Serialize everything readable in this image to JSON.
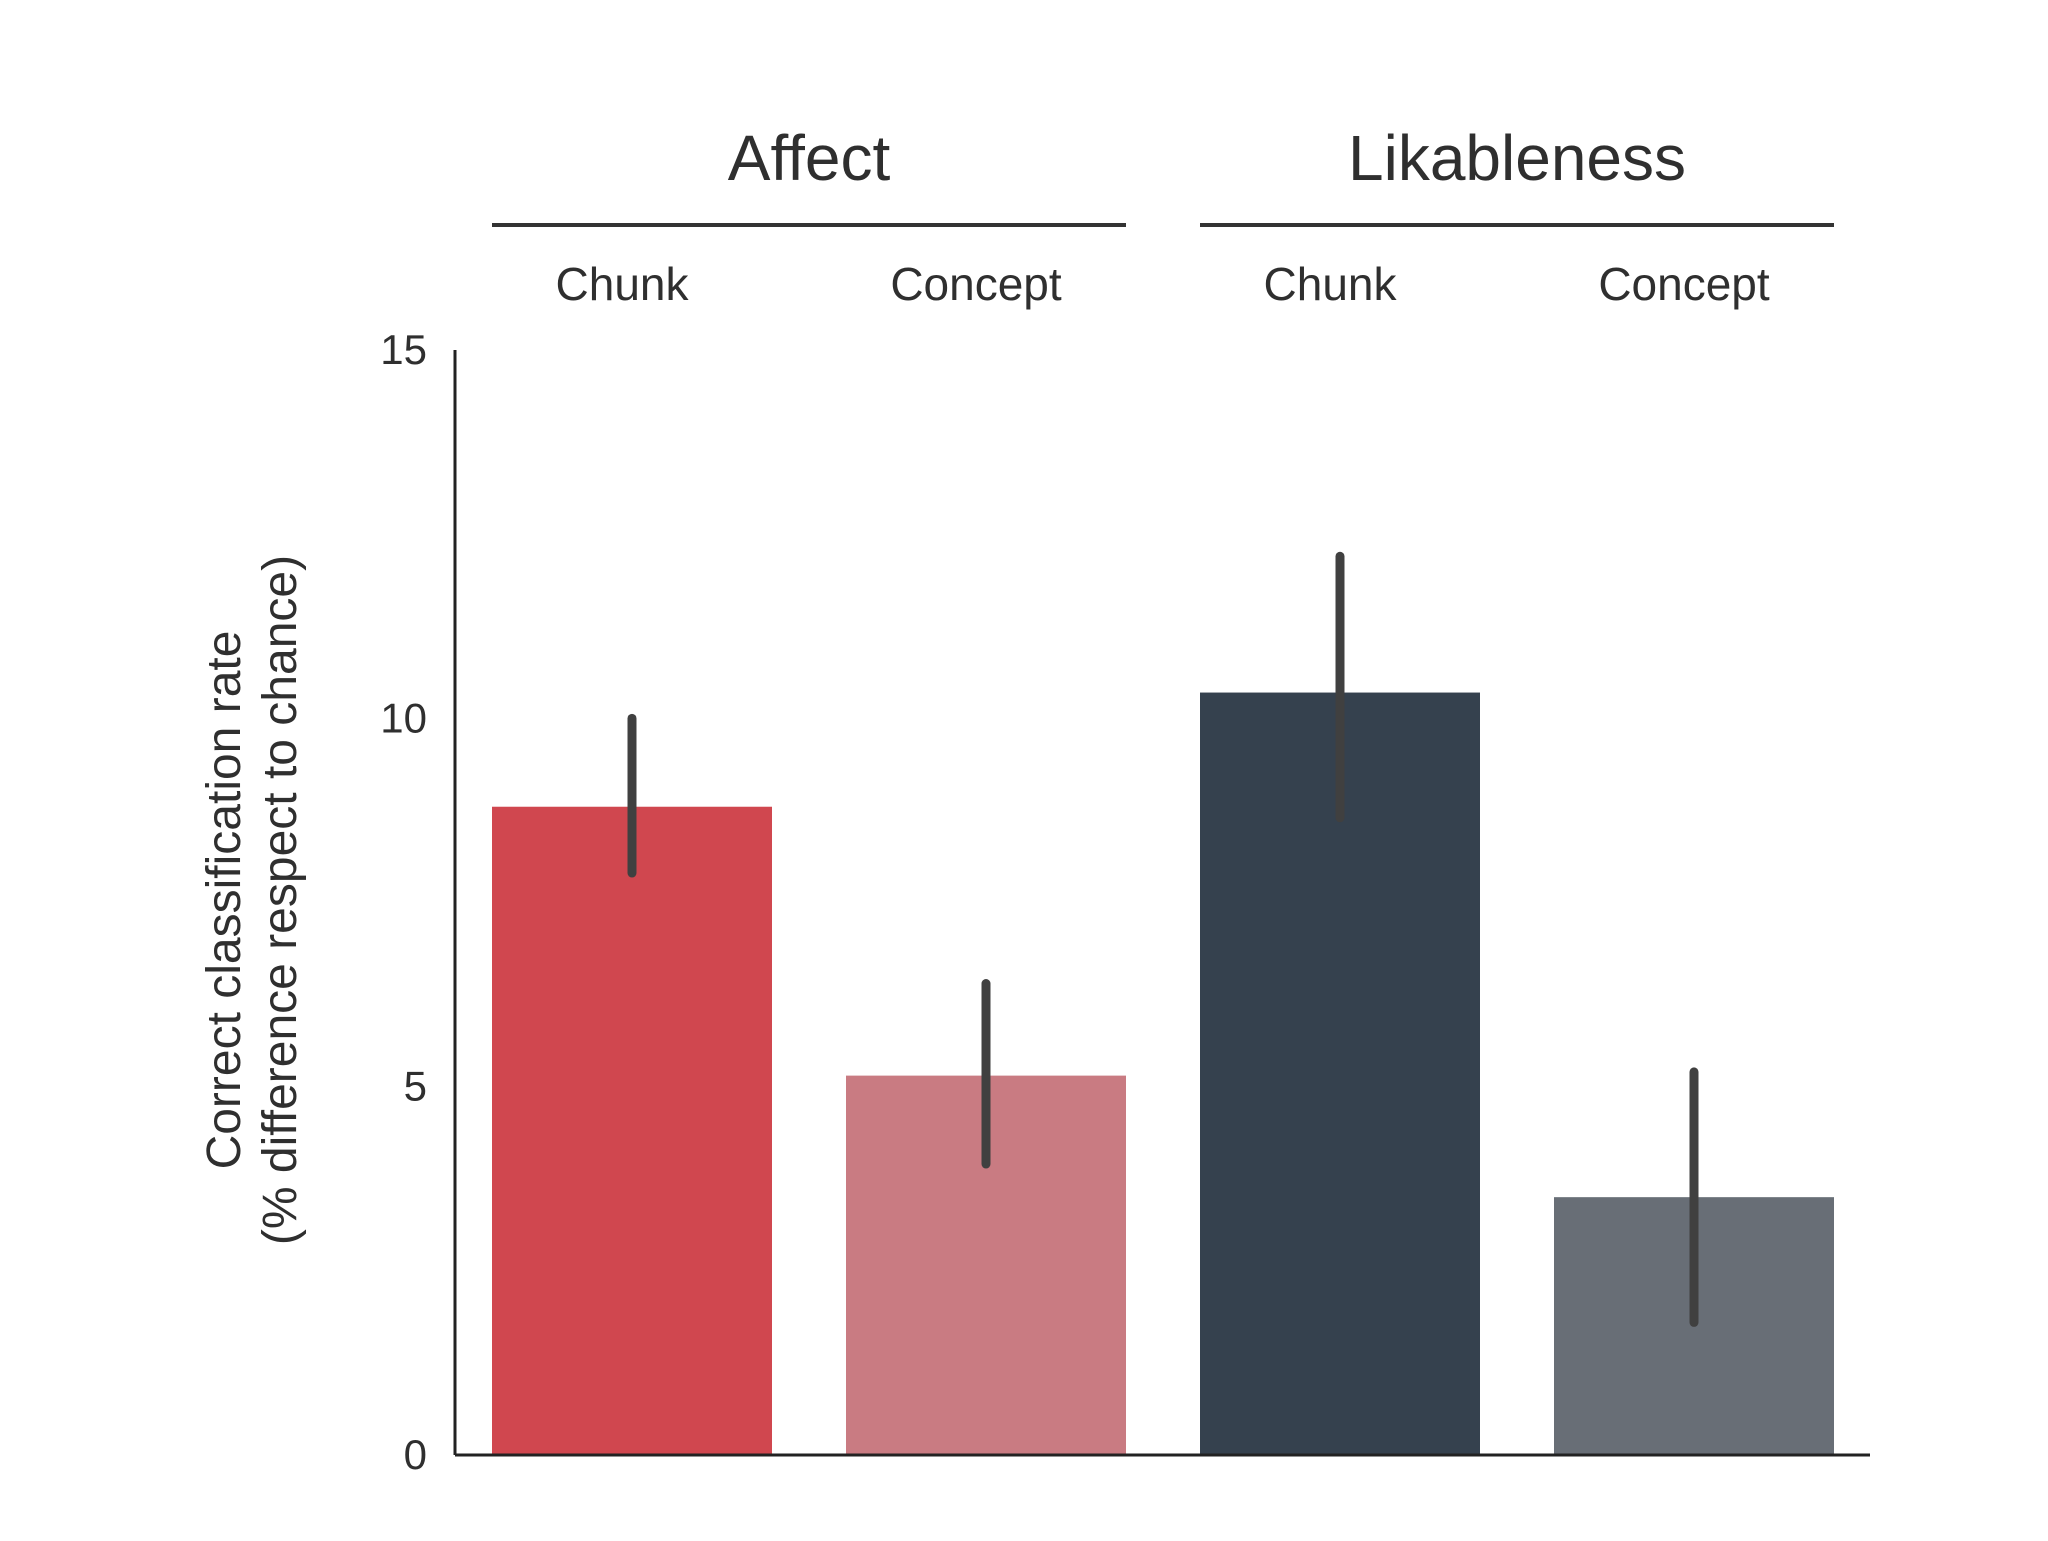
{
  "chart_data": {
    "type": "bar",
    "title": "",
    "xlabel": "",
    "ylabel": [
      "Correct classification rate",
      "(% difference respect to chance)"
    ],
    "ylim": [
      0,
      15
    ],
    "yticks": [
      0,
      5,
      10,
      15
    ],
    "groups": [
      {
        "label": "Affect",
        "categories": [
          "Chunk",
          "Concept"
        ]
      },
      {
        "label": "Likableness",
        "categories": [
          "Chunk",
          "Concept"
        ]
      }
    ],
    "categories": [
      "Chunk",
      "Concept",
      "Chunk",
      "Concept"
    ],
    "values": [
      8.8,
      5.15,
      10.35,
      3.5
    ],
    "error_low": [
      7.9,
      3.95,
      8.65,
      1.8
    ],
    "error_high": [
      10.0,
      6.4,
      12.2,
      5.2
    ],
    "colors": [
      "#d0474f",
      "#c97b82",
      "#35414e",
      "#686e76"
    ],
    "grid": false,
    "legend": "none"
  }
}
